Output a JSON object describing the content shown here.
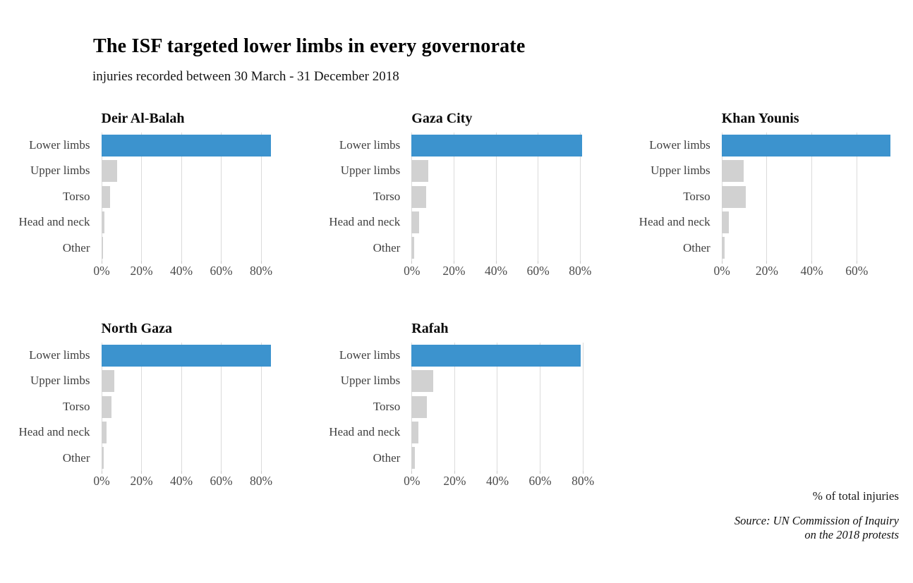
{
  "header": {
    "title": "The ISF targeted lower limbs in every governorate",
    "subtitle": "injuries recorded between 30 March - 31 December 2018"
  },
  "footer": {
    "axis_note": "% of total injuries",
    "source_line1": "Source: UN Commission of Inquiry",
    "source_line2": "on the 2018 protests"
  },
  "colors": {
    "highlight_bar": "#3c93ce",
    "muted_bar": "#d1d1d1",
    "gridline": "#dbdbdb",
    "tick_mark": "#c9c9c9"
  },
  "chart_data": {
    "type": "bar",
    "orientation": "horizontal",
    "title": "The ISF targeted lower limbs in every governorate",
    "subtitle": "injuries recorded between 30 March - 31 December 2018",
    "unit": "% of total injuries",
    "source": "Source: UN Commission of Inquiry on the 2018 protests",
    "grid": true,
    "highlight_category": "Lower limbs",
    "categories": [
      "Lower limbs",
      "Upper limbs",
      "Torso",
      "Head and neck",
      "Other"
    ],
    "tick_suffix": "%",
    "panels": [
      {
        "title": "Deir Al-Balah",
        "values": [
          85,
          8,
          4.6,
          1.6,
          0.8
        ],
        "ticks": [
          0,
          20,
          40,
          60,
          80
        ],
        "axis_max": 86
      },
      {
        "title": "Gaza City",
        "values": [
          81,
          8,
          7,
          3.7,
          1.4
        ],
        "ticks": [
          0,
          20,
          40,
          60,
          80
        ],
        "axis_max": 81.5
      },
      {
        "title": "Khan Younis",
        "values": [
          75,
          9.8,
          10.9,
          3.3,
          1.5
        ],
        "ticks": [
          0,
          20,
          40,
          60
        ],
        "axis_max": 76.3
      },
      {
        "title": "North Gaza",
        "values": [
          85,
          6.5,
          5,
          2.5,
          1.2
        ],
        "ticks": [
          0,
          20,
          40,
          60,
          80
        ],
        "axis_max": 86
      },
      {
        "title": "Rafah",
        "values": [
          79,
          10,
          7.3,
          3.3,
          1.4
        ],
        "ticks": [
          0,
          20,
          40,
          60,
          80
        ],
        "axis_max": 80.2
      }
    ]
  }
}
